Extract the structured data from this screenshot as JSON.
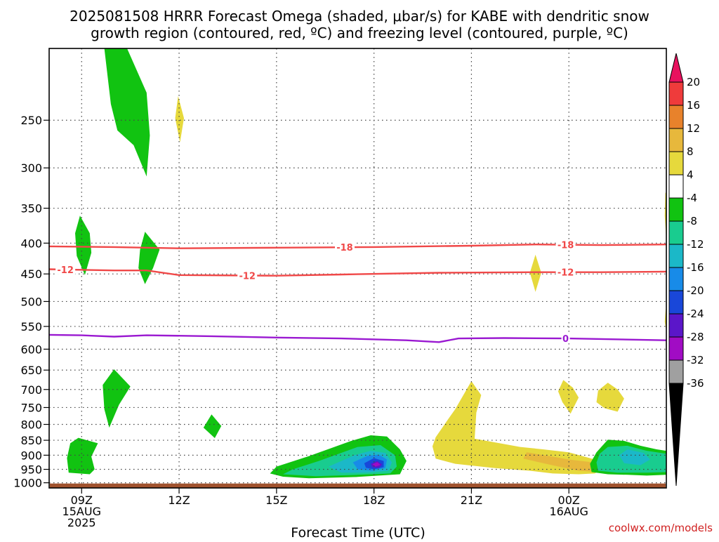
{
  "title_line1": "2025081508 HRRR Forecast Omega (shaded, μbar/s) for KABE with dendritic snow",
  "title_line2": "growth region (contoured, red, ºC) and freezing level (contoured, purple, ºC)",
  "xlabel": "Forecast Time (UTC)",
  "credit": "coolwx.com/models",
  "chart_data": {
    "type": "heatmap",
    "y_axis": {
      "label": "",
      "scale": "log-pressure",
      "range_hPa": [
        1020,
        190
      ],
      "ticks": [
        250,
        300,
        350,
        400,
        450,
        500,
        550,
        600,
        650,
        700,
        750,
        800,
        850,
        900,
        950,
        1000
      ]
    },
    "x_axis": {
      "label": "Forecast Time (UTC)",
      "range_hours": [
        8,
        27
      ],
      "ticks": [
        {
          "hour": 9,
          "lines": [
            "09Z",
            "15AUG",
            "2025"
          ]
        },
        {
          "hour": 12,
          "lines": [
            "12Z"
          ]
        },
        {
          "hour": 15,
          "lines": [
            "15Z"
          ]
        },
        {
          "hour": 18,
          "lines": [
            "18Z"
          ]
        },
        {
          "hour": 21,
          "lines": [
            "21Z"
          ]
        },
        {
          "hour": 24,
          "lines": [
            "00Z",
            "16AUG"
          ]
        }
      ],
      "grid": "dotted"
    },
    "colorbar": {
      "levels": [
        20,
        16,
        12,
        8,
        4,
        -4,
        -8,
        -12,
        -16,
        -20,
        -24,
        -28,
        -32,
        -36
      ],
      "colors": [
        "#e8125e",
        "#ef3b3b",
        "#e8822b",
        "#e7b83c",
        "#e6d93c",
        "#ffffff",
        "#11c311",
        "#19cc8f",
        "#1bb8c8",
        "#188be8",
        "#1947d9",
        "#5b16c9",
        "#a10cc4",
        "#a0a0a0",
        "#000000"
      ]
    },
    "contours": [
      {
        "name": "-18",
        "color": "#f04848",
        "points": [
          [
            8,
            405
          ],
          [
            10,
            406
          ],
          [
            12,
            408
          ],
          [
            15,
            407
          ],
          [
            18,
            406
          ],
          [
            21,
            404
          ],
          [
            23,
            402
          ],
          [
            25,
            403
          ],
          [
            27,
            402
          ]
        ],
        "labels": [
          {
            "hour": 17.1,
            "text": "-18"
          },
          {
            "hour": 23.9,
            "text": "-18"
          }
        ]
      },
      {
        "name": "-12",
        "color": "#f04848",
        "points": [
          [
            8,
            442
          ],
          [
            10,
            444
          ],
          [
            11,
            444
          ],
          [
            12,
            452
          ],
          [
            15,
            453
          ],
          [
            17,
            451
          ],
          [
            20,
            448
          ],
          [
            23,
            447
          ],
          [
            25,
            447
          ],
          [
            27,
            446
          ]
        ],
        "labels": [
          {
            "hour": 8.5,
            "text": "-12"
          },
          {
            "hour": 14.1,
            "text": "-12"
          },
          {
            "hour": 23.9,
            "text": "-12"
          }
        ]
      },
      {
        "name": "0",
        "color": "#9a19d1",
        "points": [
          [
            8,
            568
          ],
          [
            9,
            569
          ],
          [
            10,
            572
          ],
          [
            11,
            569
          ],
          [
            13,
            571
          ],
          [
            15,
            574
          ],
          [
            17,
            576
          ],
          [
            19,
            580
          ],
          [
            20,
            584
          ],
          [
            20.6,
            576
          ],
          [
            22,
            575
          ],
          [
            24,
            576
          ],
          [
            27,
            580
          ]
        ],
        "labels": [
          {
            "hour": 23.9,
            "text": "0"
          }
        ]
      }
    ],
    "shaded_regions": [
      {
        "level": "-4 to -8",
        "color": "#11c311",
        "points": [
          [
            9.7,
            190
          ],
          [
            10.4,
            190
          ],
          [
            11.0,
            225
          ],
          [
            11.1,
            265
          ],
          [
            11.0,
            310
          ],
          [
            10.6,
            275
          ],
          [
            10.1,
            260
          ],
          [
            9.9,
            235
          ]
        ]
      },
      {
        "level": "4 to 8",
        "color": "#e6d93c",
        "points": [
          [
            11.97,
            228
          ],
          [
            12.15,
            248
          ],
          [
            12.03,
            272
          ],
          [
            11.88,
            248
          ]
        ]
      },
      {
        "level": "-4 to -8",
        "color": "#11c311",
        "points": [
          [
            8.95,
            360
          ],
          [
            9.25,
            385
          ],
          [
            9.3,
            415
          ],
          [
            9.1,
            452
          ],
          [
            8.85,
            420
          ],
          [
            8.8,
            385
          ]
        ]
      },
      {
        "level": "-4 to -8",
        "color": "#11c311",
        "points": [
          [
            10.95,
            383
          ],
          [
            11.4,
            410
          ],
          [
            11.2,
            440
          ],
          [
            10.95,
            468
          ],
          [
            10.75,
            440
          ],
          [
            10.8,
            410
          ]
        ]
      },
      {
        "level": "4 to 8",
        "color": "#e6d93c",
        "points": [
          [
            22.97,
            418
          ],
          [
            23.15,
            448
          ],
          [
            22.97,
            482
          ],
          [
            22.8,
            448
          ]
        ]
      },
      {
        "level": "4 to 8",
        "color": "#e6d93c",
        "points": [
          [
            26.97,
            330
          ],
          [
            27.0,
            330
          ],
          [
            27.0,
            395
          ],
          [
            26.95,
            360
          ]
        ]
      },
      {
        "level": "4 to 8",
        "color": "#e6d93c",
        "points": [
          [
            26.98,
            515
          ],
          [
            27.0,
            515
          ],
          [
            27.0,
            560
          ],
          [
            26.95,
            540
          ]
        ]
      },
      {
        "level": "-4 to -8",
        "color": "#11c311",
        "points": [
          [
            10.0,
            648
          ],
          [
            10.5,
            692
          ],
          [
            10.15,
            742
          ],
          [
            9.85,
            810
          ],
          [
            9.7,
            755
          ],
          [
            9.65,
            688
          ]
        ]
      },
      {
        "level": "-4 to -8",
        "color": "#11c311",
        "points": [
          [
            13.0,
            770
          ],
          [
            13.3,
            805
          ],
          [
            13.1,
            843
          ],
          [
            12.75,
            810
          ]
        ]
      },
      {
        "level": "-4 to -8",
        "color": "#11c311",
        "points": [
          [
            8.9,
            842
          ],
          [
            9.5,
            860
          ],
          [
            9.3,
            905
          ],
          [
            9.4,
            950
          ],
          [
            9.25,
            968
          ],
          [
            8.6,
            962
          ],
          [
            8.55,
            910
          ],
          [
            8.65,
            860
          ]
        ]
      },
      {
        "level": "4 to 8",
        "color": "#e6d93c",
        "points": [
          [
            23.83,
            675
          ],
          [
            24.12,
            695
          ],
          [
            24.3,
            722
          ],
          [
            24.05,
            768
          ],
          [
            23.8,
            735
          ],
          [
            23.67,
            705
          ]
        ]
      },
      {
        "level": "4 to 8",
        "color": "#e6d93c",
        "points": [
          [
            25.2,
            682
          ],
          [
            25.5,
            700
          ],
          [
            25.7,
            725
          ],
          [
            25.5,
            762
          ],
          [
            25.1,
            752
          ],
          [
            24.85,
            735
          ],
          [
            24.9,
            703
          ]
        ]
      },
      {
        "level": "4 to 8",
        "color": "#e6d93c",
        "points": [
          [
            21.0,
            678
          ],
          [
            21.3,
            715
          ],
          [
            21.15,
            765
          ],
          [
            21.1,
            845
          ],
          [
            22.5,
            872
          ],
          [
            23.2,
            880
          ],
          [
            24.0,
            890
          ],
          [
            24.8,
            915
          ],
          [
            25.0,
            950
          ],
          [
            24.8,
            965
          ],
          [
            24.3,
            968
          ],
          [
            23.5,
            965
          ],
          [
            22.8,
            955
          ],
          [
            21.7,
            945
          ],
          [
            20.5,
            930
          ],
          [
            19.9,
            912
          ],
          [
            19.8,
            870
          ],
          [
            19.9,
            840
          ],
          [
            20.3,
            782
          ],
          [
            20.5,
            755
          ]
        ]
      },
      {
        "level": "8 to 12",
        "color": "#e7b83c",
        "points": [
          [
            22.7,
            890
          ],
          [
            23.5,
            905
          ],
          [
            24.0,
            915
          ],
          [
            24.9,
            927
          ],
          [
            24.9,
            960
          ],
          [
            24.3,
            955
          ],
          [
            23.6,
            938
          ],
          [
            22.6,
            912
          ]
        ]
      },
      {
        "level": "-4 to -8",
        "color": "#11c311",
        "points": [
          [
            15.0,
            940
          ],
          [
            16.0,
            903
          ],
          [
            17.3,
            852
          ],
          [
            17.9,
            834
          ],
          [
            18.4,
            838
          ],
          [
            18.8,
            880
          ],
          [
            19.0,
            920
          ],
          [
            18.8,
            968
          ],
          [
            17.5,
            978
          ],
          [
            16.0,
            983
          ],
          [
            15.2,
            977
          ],
          [
            14.8,
            965
          ]
        ]
      },
      {
        "level": "-8 to -12",
        "color": "#19cc8f",
        "points": [
          [
            15.5,
            950
          ],
          [
            16.3,
            920
          ],
          [
            17.5,
            872
          ],
          [
            18.2,
            866
          ],
          [
            18.65,
            900
          ],
          [
            18.7,
            940
          ],
          [
            18.5,
            965
          ],
          [
            17.5,
            970
          ],
          [
            16.2,
            975
          ],
          [
            15.2,
            968
          ]
        ]
      },
      {
        "level": "-12 to -16",
        "color": "#1bb8c8",
        "points": [
          [
            16.6,
            940
          ],
          [
            17.4,
            900
          ],
          [
            17.9,
            885
          ],
          [
            18.35,
            892
          ],
          [
            18.55,
            925
          ],
          [
            18.45,
            955
          ],
          [
            17.8,
            962
          ],
          [
            17.0,
            962
          ]
        ]
      },
      {
        "level": "-16 to -20",
        "color": "#188be8",
        "points": [
          [
            17.35,
            925
          ],
          [
            17.8,
            902
          ],
          [
            18.15,
            898
          ],
          [
            18.4,
            915
          ],
          [
            18.35,
            945
          ],
          [
            17.95,
            955
          ],
          [
            17.5,
            950
          ]
        ]
      },
      {
        "level": "-20 to -24",
        "color": "#1947d9",
        "points": [
          [
            17.7,
            928
          ],
          [
            18.0,
            910
          ],
          [
            18.3,
            920
          ],
          [
            18.3,
            942
          ],
          [
            18.0,
            950
          ],
          [
            17.75,
            944
          ]
        ]
      },
      {
        "level": "-24 to -28",
        "color": "#5b16c9",
        "points": [
          [
            17.9,
            930
          ],
          [
            18.1,
            920
          ],
          [
            18.25,
            932
          ],
          [
            18.15,
            945
          ],
          [
            17.95,
            942
          ]
        ]
      },
      {
        "level": "-28 to -32",
        "color": "#a10cc4",
        "points": [
          [
            17.95,
            932
          ],
          [
            18.1,
            924
          ],
          [
            18.2,
            934
          ],
          [
            18.05,
            940
          ]
        ]
      },
      {
        "level": "-4 to -8",
        "color": "#11c311",
        "points": [
          [
            25.2,
            848
          ],
          [
            25.7,
            852
          ],
          [
            26.2,
            868
          ],
          [
            26.7,
            880
          ],
          [
            27.0,
            885
          ],
          [
            27.0,
            970
          ],
          [
            26.4,
            973
          ],
          [
            25.8,
            970
          ],
          [
            25.2,
            968
          ],
          [
            24.7,
            960
          ],
          [
            24.65,
            930
          ],
          [
            24.85,
            890
          ]
        ]
      },
      {
        "level": "-8 to -12",
        "color": "#19cc8f",
        "points": [
          [
            25.2,
            872
          ],
          [
            25.8,
            868
          ],
          [
            26.4,
            885
          ],
          [
            27.0,
            895
          ],
          [
            27.0,
            960
          ],
          [
            26.4,
            962
          ],
          [
            25.5,
            962
          ],
          [
            24.9,
            955
          ],
          [
            24.85,
            925
          ],
          [
            24.95,
            895
          ]
        ]
      },
      {
        "level": "-12 to -16",
        "color": "#1bb8c8",
        "points": [
          [
            25.8,
            880
          ],
          [
            26.3,
            892
          ],
          [
            26.5,
            915
          ],
          [
            26.2,
            935
          ],
          [
            25.7,
            928
          ],
          [
            25.55,
            900
          ]
        ]
      }
    ],
    "terrain": {
      "color": "#a0522d",
      "top_hPa": 1003
    }
  }
}
